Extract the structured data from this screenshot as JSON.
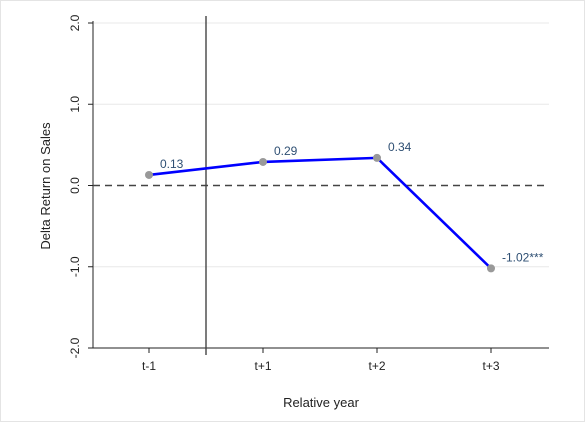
{
  "chart_data": {
    "type": "line",
    "xlabel": "Relative year",
    "ylabel": "Delta Return on Sales",
    "categories": [
      "t-1",
      "t+1",
      "t+2",
      "t+3"
    ],
    "series": [
      {
        "values": [
          0.13,
          0.29,
          0.34,
          -1.02
        ],
        "labels": [
          "0.13",
          "0.29",
          "0.34",
          "-1.02***"
        ],
        "color": "#0000ff",
        "marker_color": "#999999"
      }
    ],
    "ylim": [
      -2.0,
      2.0
    ],
    "yticks": [
      2.0,
      1.0,
      0.0,
      -1.0,
      -2.0
    ],
    "ytick_labels": [
      "2.0",
      "1.0",
      "0.0",
      "-1.0",
      "-2.0"
    ],
    "reference_lines": {
      "horizontal": {
        "y": 0.0,
        "style": "dashed",
        "color": "#444444"
      },
      "vertical": {
        "between_categories": [
          "t-1",
          "t+1"
        ],
        "style": "solid",
        "color": "#444444"
      }
    },
    "grid": "horizontal",
    "grid_color": "#e8e8e8",
    "legend": "none"
  }
}
